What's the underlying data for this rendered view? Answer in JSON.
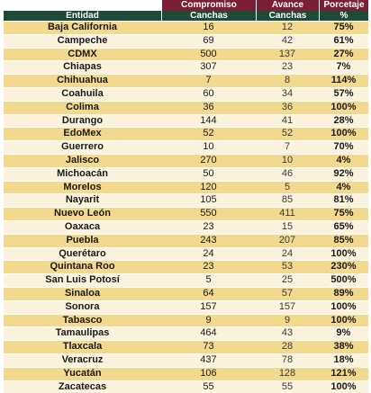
{
  "header": {
    "group": [
      "Compromiso",
      "Avance",
      "Porcetaje"
    ],
    "columns": [
      "Entidad",
      "Canchas",
      "Canchas",
      "%"
    ]
  },
  "rows": [
    {
      "entidad": "Baja California",
      "compromiso": "16",
      "avance": "12",
      "porcentaje": "75%"
    },
    {
      "entidad": "Campeche",
      "compromiso": "69",
      "avance": "42",
      "porcentaje": "61%"
    },
    {
      "entidad": "CDMX",
      "compromiso": "500",
      "avance": "137",
      "porcentaje": "27%"
    },
    {
      "entidad": "Chiapas",
      "compromiso": "307",
      "avance": "23",
      "porcentaje": "7%"
    },
    {
      "entidad": "Chihuahua",
      "compromiso": "7",
      "avance": "8",
      "porcentaje": "114%"
    },
    {
      "entidad": "Coahuila",
      "compromiso": "60",
      "avance": "34",
      "porcentaje": "57%"
    },
    {
      "entidad": "Colima",
      "compromiso": "36",
      "avance": "36",
      "porcentaje": "100%"
    },
    {
      "entidad": "Durango",
      "compromiso": "144",
      "avance": "41",
      "porcentaje": "28%"
    },
    {
      "entidad": "EdoMex",
      "compromiso": "52",
      "avance": "52",
      "porcentaje": "100%"
    },
    {
      "entidad": "Guerrero",
      "compromiso": "10",
      "avance": "7",
      "porcentaje": "70%"
    },
    {
      "entidad": "Jalisco",
      "compromiso": "270",
      "avance": "10",
      "porcentaje": "4%"
    },
    {
      "entidad": "Michoacán",
      "compromiso": "50",
      "avance": "46",
      "porcentaje": "92%"
    },
    {
      "entidad": "Morelos",
      "compromiso": "120",
      "avance": "5",
      "porcentaje": "4%"
    },
    {
      "entidad": "Nayarit",
      "compromiso": "105",
      "avance": "85",
      "porcentaje": "81%"
    },
    {
      "entidad": "Nuevo León",
      "compromiso": "550",
      "avance": "411",
      "porcentaje": "75%"
    },
    {
      "entidad": "Oaxaca",
      "compromiso": "23",
      "avance": "15",
      "porcentaje": "65%"
    },
    {
      "entidad": "Puebla",
      "compromiso": "243",
      "avance": "207",
      "porcentaje": "85%"
    },
    {
      "entidad": "Querétaro",
      "compromiso": "24",
      "avance": "24",
      "porcentaje": "100%"
    },
    {
      "entidad": "Quintana Roo",
      "compromiso": "23",
      "avance": "53",
      "porcentaje": "230%"
    },
    {
      "entidad": "San Luis Potosí",
      "compromiso": "5",
      "avance": "25",
      "porcentaje": "500%"
    },
    {
      "entidad": "Sinaloa",
      "compromiso": "64",
      "avance": "57",
      "porcentaje": "89%"
    },
    {
      "entidad": "Sonora",
      "compromiso": "157",
      "avance": "157",
      "porcentaje": "100%"
    },
    {
      "entidad": "Tabasco",
      "compromiso": "9",
      "avance": "9",
      "porcentaje": "100%"
    },
    {
      "entidad": "Tamaulipas",
      "compromiso": "464",
      "avance": "43",
      "porcentaje": "9%"
    },
    {
      "entidad": "Tlaxcala",
      "compromiso": "73",
      "avance": "28",
      "porcentaje": "38%"
    },
    {
      "entidad": "Veracruz",
      "compromiso": "437",
      "avance": "78",
      "porcentaje": "18%"
    },
    {
      "entidad": "Yucatán",
      "compromiso": "106",
      "avance": "128",
      "porcentaje": "121%"
    },
    {
      "entidad": "Zacatecas",
      "compromiso": "55",
      "avance": "55",
      "porcentaje": "100%"
    }
  ]
}
